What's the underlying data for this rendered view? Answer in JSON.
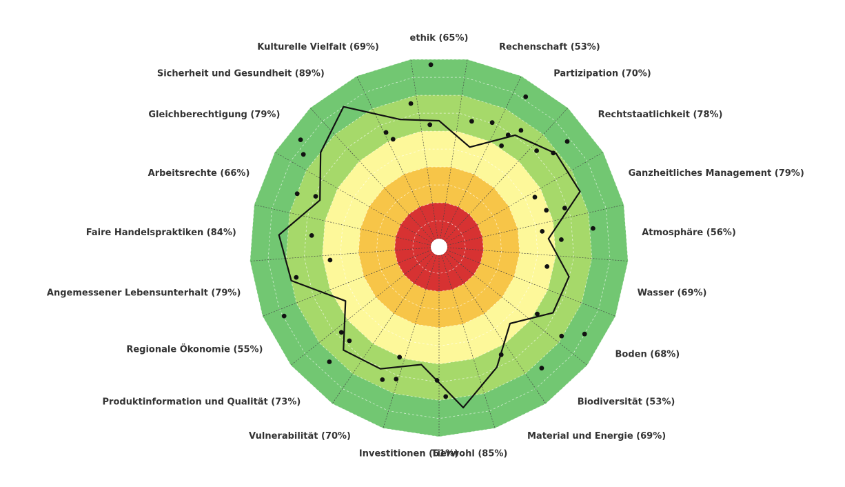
{
  "chart_data": {
    "type": "radar",
    "title": "",
    "ylim": [
      0,
      100
    ],
    "grid": true,
    "rings": [
      {
        "from": 0,
        "to": 20,
        "color": "#d73232"
      },
      {
        "from": 20,
        "to": 40,
        "color": "#f7c548"
      },
      {
        "from": 40,
        "to": 60,
        "color": "#fdf89a"
      },
      {
        "from": 60,
        "to": 80,
        "color": "#a6d96a"
      },
      {
        "from": 80,
        "to": 100,
        "color": "#72c772"
      }
    ],
    "categories": [
      {
        "label": "ethik (65%)",
        "value": 65
      },
      {
        "label": "Rechenschaft (53%)",
        "value": 53
      },
      {
        "label": "Partizipation (70%)",
        "value": 70
      },
      {
        "label": "Rechtstaatlichkeit (78%)",
        "value": 78
      },
      {
        "label": "Ganzheitliches Management (79%)",
        "value": 79
      },
      {
        "label": "Atmosphäre (56%)",
        "value": 56
      },
      {
        "label": "Wasser (69%)",
        "value": 69
      },
      {
        "label": "Boden (68%)",
        "value": 68
      },
      {
        "label": "Biodiversität (53%)",
        "value": 53
      },
      {
        "label": "Material und Energie (69%)",
        "value": 69
      },
      {
        "label": "Tierwohl (85%)",
        "value": 85
      },
      {
        "label": "Investitionen (61%)",
        "value": 61
      },
      {
        "label": "Vulnerabilität (70%)",
        "value": 70
      },
      {
        "label": "Produktinformation und Qualität (73%)",
        "value": 73
      },
      {
        "label": "Regionale Ökonomie (55%)",
        "value": 55
      },
      {
        "label": "Angemessener Lebensunterhalt (79%)",
        "value": 79
      },
      {
        "label": "Faire Handelspraktiken (84%)",
        "value": 84
      },
      {
        "label": "Arbeitsrechte (66%)",
        "value": 66
      },
      {
        "label": "Gleichberechtigung (79%)",
        "value": 79
      },
      {
        "label": "Sicherheit und Gesundheit (89%)",
        "value": 89
      },
      {
        "label": "Kulturelle Vielfalt (69%)",
        "value": 69
      }
    ],
    "indicator_points": [
      [
        [
          62,
          67
        ],
        [
          65,
          66
        ]
      ],
      [
        [
          59,
          60
        ],
        [
          74,
          58
        ]
      ],
      [
        [
          73,
          68
        ],
        [
          88,
          86
        ]
      ],
      [
        [
          80,
          72
        ],
        [
          86,
          79
        ]
      ],
      [
        [
          67,
          67
        ],
        [
          85,
          69
        ]
      ],
      [
        [
          67,
          68
        ],
        [
          69,
          55
        ]
      ],
      [
        [
          55,
          67
        ],
        [
          77,
          75
        ]
      ],
      [
        [
          68,
          53
        ],
        [
          62,
          76
        ]
      ],
      [
        [
          48,
          64
        ],
        [
          55,
          76
        ]
      ],
      [
        [
          67,
          56
        ],
        [
          72,
          78
        ]
      ],
      [
        [
          86,
          87
        ],
        [
          86,
          77
        ]
      ],
      [
        [
          58,
          63
        ],
        [
          70,
          69
        ]
      ],
      [
        [
          79,
          60
        ],
        [
          82,
          70
        ]
      ],
      [
        [
          72,
          89
        ],
        [
          85,
          63
        ]
      ],
      [
        [
          64,
          83
        ],
        [
          72,
          56
        ]
      ],
      [
        [
          62,
          79
        ],
        [
          85,
          89
        ]
      ],
      [
        [
          96,
          92
        ],
        [
          79,
          71
        ]
      ],
      [
        [
          77,
          61
        ],
        [
          83,
          61
        ]
      ],
      [
        [
          97,
          96
        ],
        [
          65,
          83
        ]
      ],
      [
        [
          98,
          91
        ],
        [
          75,
          74
        ]
      ],
      [
        [
          77,
          81
        ],
        [
          70,
          65
        ]
      ]
    ]
  }
}
